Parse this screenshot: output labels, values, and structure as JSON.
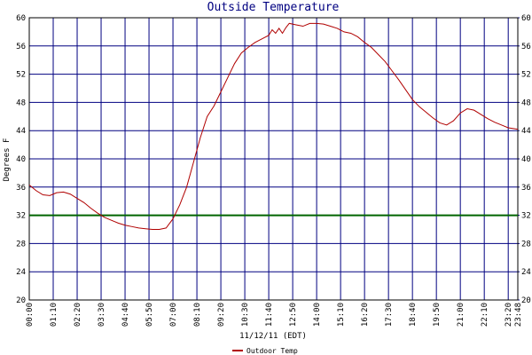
{
  "chart_data": {
    "type": "line",
    "title": "Outside Temperature",
    "x_label": "11/12/11 (EDT)",
    "y_label": "Degrees F",
    "x": [
      0,
      20,
      40,
      60,
      80,
      100,
      120,
      140,
      160,
      180,
      200,
      220,
      240,
      260,
      280,
      300,
      320,
      340,
      360,
      380,
      400,
      420,
      440,
      460,
      480,
      500,
      520,
      540,
      560,
      580,
      600,
      620,
      640,
      660,
      680,
      700,
      710,
      720,
      730,
      740,
      750,
      760,
      780,
      800,
      820,
      840,
      860,
      880,
      900,
      920,
      940,
      960,
      980,
      1000,
      1020,
      1040,
      1060,
      1080,
      1100,
      1120,
      1140,
      1160,
      1180,
      1200,
      1220,
      1240,
      1260,
      1280,
      1300,
      1320,
      1340,
      1360,
      1380,
      1400,
      1428
    ],
    "series": [
      {
        "name": "Outdoor Temp",
        "color": "#b00000",
        "values": [
          36.3,
          35.5,
          34.9,
          34.8,
          35.2,
          35.3,
          35.0,
          34.4,
          33.8,
          33.0,
          32.3,
          31.7,
          31.3,
          30.9,
          30.6,
          30.4,
          30.2,
          30.1,
          30.0,
          30.0,
          30.2,
          31.5,
          33.5,
          36.0,
          39.5,
          43.0,
          46.0,
          47.5,
          49.5,
          51.5,
          53.5,
          55.0,
          55.8,
          56.5,
          57.0,
          57.5,
          58.3,
          57.8,
          58.5,
          57.8,
          58.6,
          59.2,
          59.0,
          58.8,
          59.2,
          59.2,
          59.1,
          58.8,
          58.5,
          58.0,
          57.8,
          57.3,
          56.5,
          55.8,
          54.8,
          53.8,
          52.5,
          51.2,
          49.8,
          48.4,
          47.4,
          46.6,
          45.8,
          45.1,
          44.8,
          45.4,
          46.5,
          47.1,
          46.9,
          46.3,
          45.7,
          45.2,
          44.8,
          44.4,
          44.2
        ]
      }
    ],
    "reference_line": {
      "value": 32,
      "color": "#006400"
    },
    "xlim": [
      0,
      1428
    ],
    "xticks": [
      {
        "value": 0,
        "label": "00:00"
      },
      {
        "value": 70,
        "label": "01:10"
      },
      {
        "value": 140,
        "label": "02:20"
      },
      {
        "value": 210,
        "label": "03:30"
      },
      {
        "value": 280,
        "label": "04:40"
      },
      {
        "value": 350,
        "label": "05:50"
      },
      {
        "value": 420,
        "label": "07:00"
      },
      {
        "value": 490,
        "label": "08:10"
      },
      {
        "value": 560,
        "label": "09:20"
      },
      {
        "value": 630,
        "label": "10:30"
      },
      {
        "value": 700,
        "label": "11:40"
      },
      {
        "value": 770,
        "label": "12:50"
      },
      {
        "value": 840,
        "label": "14:00"
      },
      {
        "value": 910,
        "label": "15:10"
      },
      {
        "value": 980,
        "label": "16:20"
      },
      {
        "value": 1050,
        "label": "17:30"
      },
      {
        "value": 1120,
        "label": "18:40"
      },
      {
        "value": 1190,
        "label": "19:50"
      },
      {
        "value": 1260,
        "label": "21:00"
      },
      {
        "value": 1330,
        "label": "22:10"
      },
      {
        "value": 1400,
        "label": "23:20"
      },
      {
        "value": 1428,
        "label": "23:48"
      }
    ],
    "ylim": [
      20,
      60
    ],
    "yticks": [
      20,
      24,
      28,
      32,
      36,
      40,
      44,
      48,
      52,
      56,
      60
    ],
    "y2lim": [
      20,
      60
    ],
    "y2ticks": [
      20,
      24,
      28,
      32,
      36,
      40,
      44,
      48,
      52,
      56,
      60
    ],
    "grid": true,
    "grid_color": "#000080"
  }
}
